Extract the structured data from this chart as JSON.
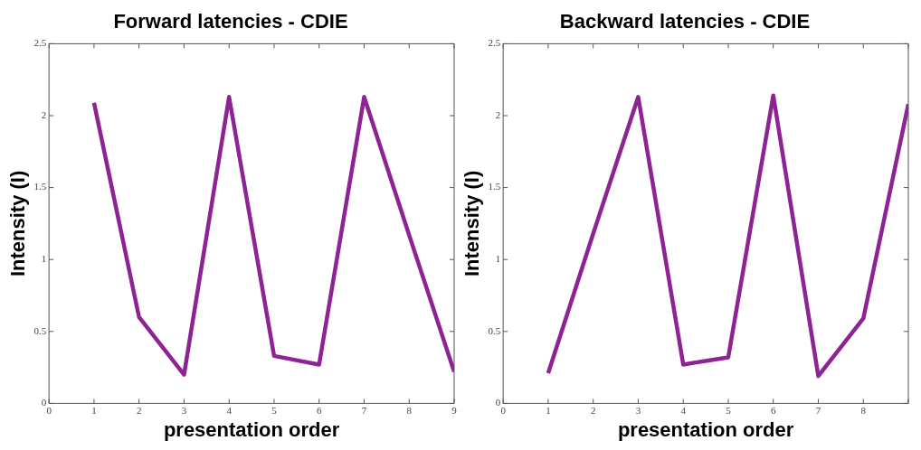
{
  "chart_data": [
    {
      "type": "line",
      "title": "Forward latencies - CDIE",
      "xlabel": "presentation order",
      "ylabel": "Intensity (I)",
      "x": [
        1,
        2,
        3,
        4,
        5,
        6,
        7,
        8,
        9
      ],
      "series": [
        {
          "color": "#8e2494",
          "values": [
            2.09,
            0.6,
            0.2,
            2.13,
            0.33,
            0.27,
            2.13,
            1.17,
            0.22
          ]
        }
      ],
      "xlim": [
        0,
        9
      ],
      "xticks": [
        0,
        1,
        2,
        3,
        4,
        5,
        6,
        7,
        8,
        9
      ],
      "ylim": [
        0,
        2.5
      ],
      "yticks": [
        0,
        0.5,
        1,
        1.5,
        2,
        2.5
      ],
      "grid": false,
      "marker": "none",
      "line_style": "solid"
    },
    {
      "type": "line",
      "title": "Backward latencies - CDIE",
      "xlabel": "presentation order",
      "ylabel": "Intensity (I)",
      "x": [
        1,
        2,
        3,
        4,
        5,
        6,
        7,
        8,
        9
      ],
      "series": [
        {
          "color": "#8e2494",
          "values": [
            0.21,
            1.18,
            2.13,
            0.27,
            0.32,
            2.14,
            0.19,
            0.59,
            2.08
          ]
        }
      ],
      "xlim": [
        0,
        9
      ],
      "xticks": [
        0,
        1,
        2,
        3,
        4,
        5,
        6,
        7,
        8,
        {
          "value": 9,
          "label": null
        }
      ],
      "ylim": [
        0,
        2.5
      ],
      "yticks": [
        0,
        0.5,
        1,
        1.5,
        2,
        2.5
      ],
      "grid": false,
      "marker": "none",
      "line_style": "solid"
    }
  ]
}
